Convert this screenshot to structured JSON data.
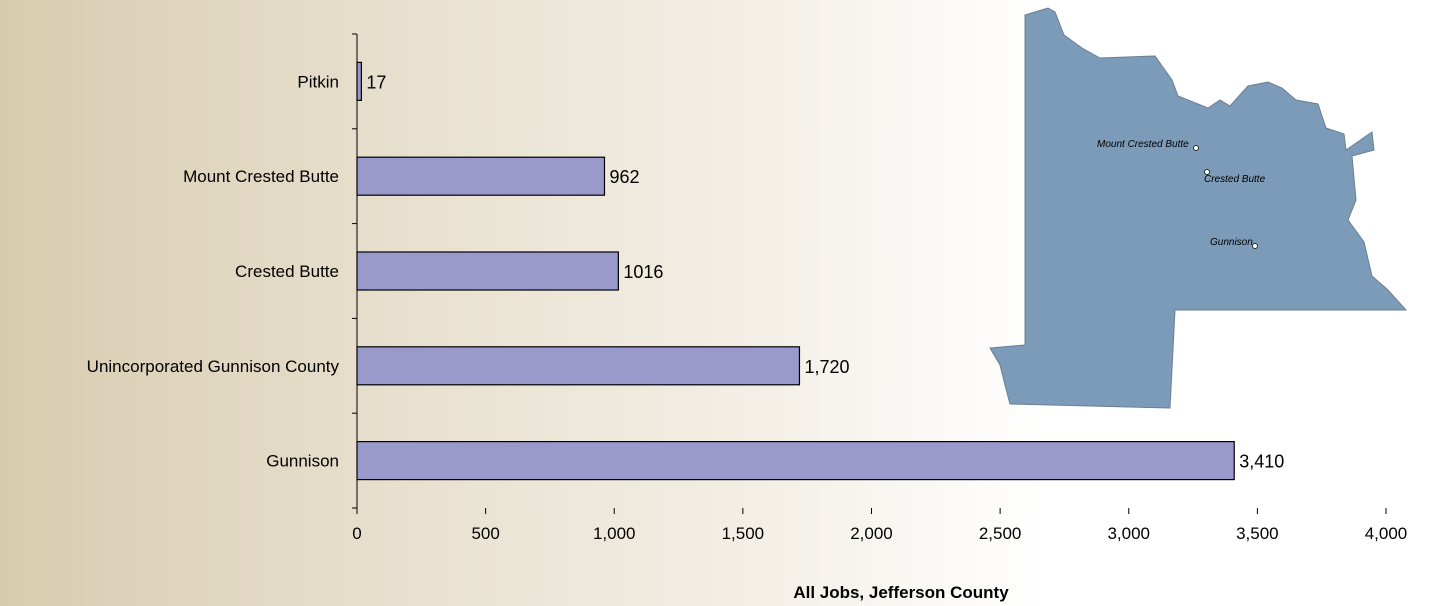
{
  "chart_data": {
    "type": "bar",
    "orientation": "horizontal",
    "categories": [
      "Pitkin",
      "Mount Crested Butte",
      "Crested Butte",
      "Unincorporated Gunnison County",
      "Gunnison"
    ],
    "values": [
      17,
      962,
      1016,
      1720,
      3410
    ],
    "data_labels": [
      "17",
      "962",
      "1016",
      "1,720",
      "3,410"
    ],
    "xlabel": "All Jobs, Jefferson County",
    "xlim": [
      0,
      4000
    ],
    "x_ticks": [
      0,
      500,
      1000,
      1500,
      2000,
      2500,
      3000,
      3500,
      4000
    ],
    "x_tick_labels": [
      "0",
      "500",
      "1,000",
      "1,500",
      "2,000",
      "2,500",
      "3,000",
      "3,500",
      "4,000"
    ],
    "grid": false,
    "legend": "none",
    "bar_color": "#9999cc"
  },
  "map": {
    "fill_color": "#7b9bb8",
    "places": [
      "Mount Crested Butte",
      "Crested Butte",
      "Gunnison"
    ]
  }
}
